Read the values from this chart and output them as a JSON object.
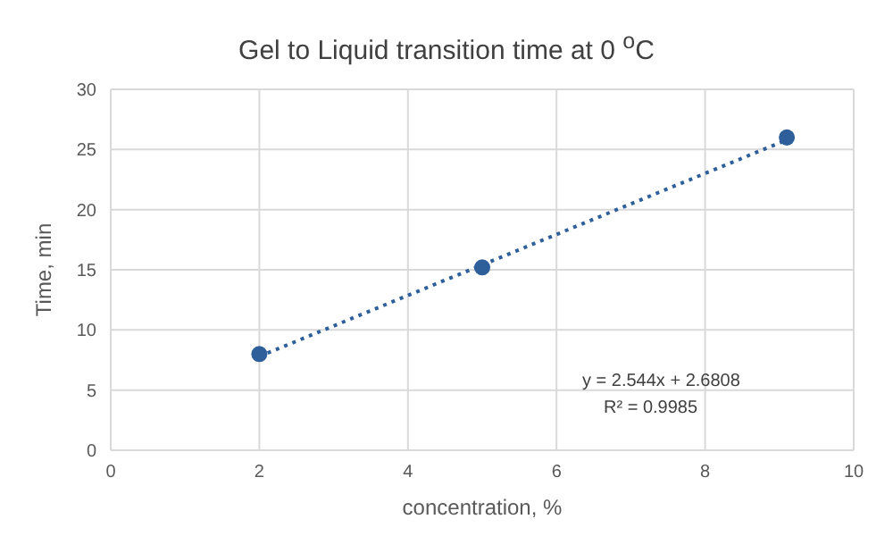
{
  "chart_data": {
    "type": "scatter",
    "title": "Gel to Liquid transition time at 0 $^{o}$C",
    "xlabel": "concentration, %",
    "ylabel": "Time, min",
    "xlim": [
      0,
      10
    ],
    "xticks": [
      0,
      2,
      4,
      6,
      8,
      10
    ],
    "ylim": [
      0,
      30
    ],
    "yticks": [
      0,
      5,
      10,
      15,
      20,
      25,
      30
    ],
    "grid": true,
    "marker": "circle",
    "series": [
      {
        "color": "#2e5f9a",
        "x": [
          2,
          5,
          9.1
        ],
        "values": [
          8,
          15.2,
          26
        ]
      },
      {
        "type": "line",
        "color": "#2e5f9a",
        "x": [
          2,
          9.1
        ],
        "values": [
          7.8,
          25.8
        ],
        "line_style": "dotted",
        "marker": "none"
      }
    ],
    "annotations": [
      "y = 2.544x + 2.6808",
      "R² = 0.9985"
    ]
  }
}
